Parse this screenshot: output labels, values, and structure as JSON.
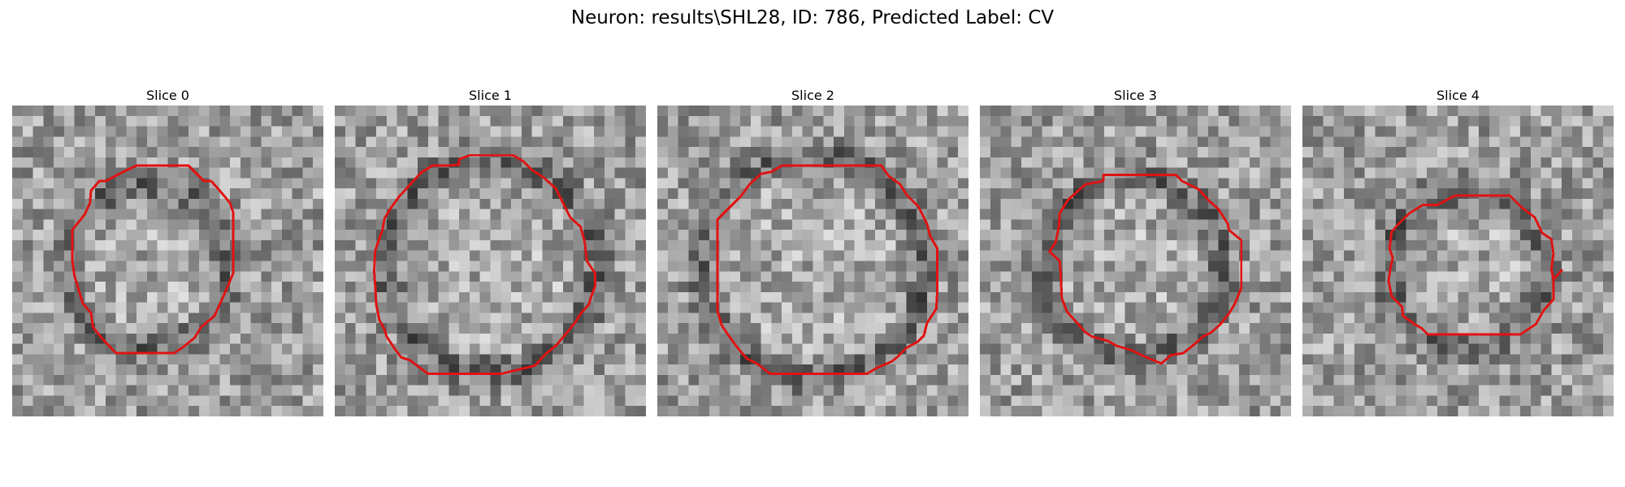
{
  "figure": {
    "title": "Neuron: results\\SHL28, ID: 786, Predicted Label: CV"
  },
  "panels": [
    {
      "title": "Slice 0"
    },
    {
      "title": "Slice 1"
    },
    {
      "title": "Slice 2"
    },
    {
      "title": "Slice 3"
    },
    {
      "title": "Slice 4"
    }
  ],
  "colors": {
    "contour": "#e11212",
    "background": "#ffffff"
  },
  "image_style": "grayscale-pixelated-microscopy"
}
